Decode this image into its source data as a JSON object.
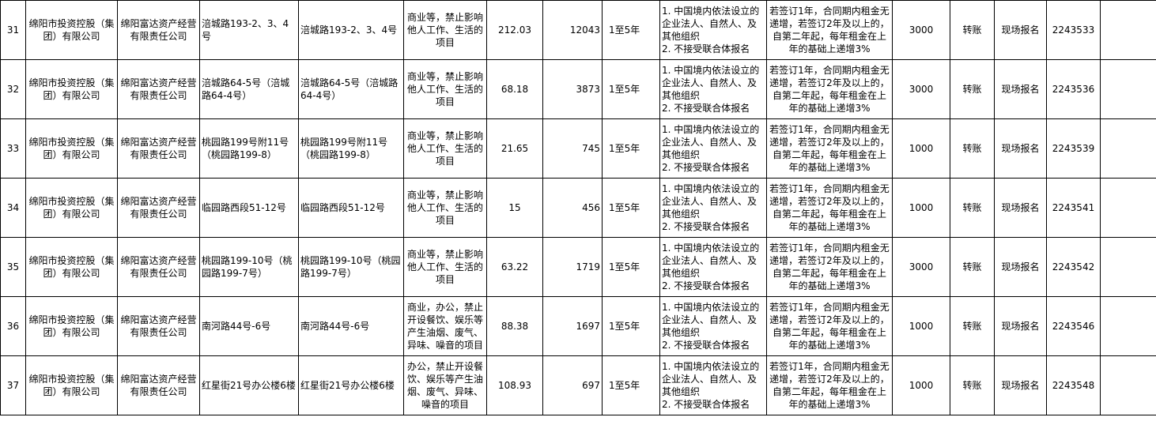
{
  "rows": [
    {
      "no": "31",
      "owner": "绵阳市投资控股（集团）有限公司",
      "operator": "绵阳富达资产经营有限责任公司",
      "address": "涪城路193-2、3、4号",
      "location": "涪城路193-2、3、4号",
      "usage": "商业等，禁止影响他人工作、生活的项目",
      "area": "212.03",
      "rent": "12043",
      "term": "1至5年",
      "requirements": [
        "1. 中国境内依法设立的企业法人、自然人、及其他组织",
        "2. 不接受联合体报名"
      ],
      "increase": "若签订1年，合同期内租金无递增，若签订2年及以上的，自第二年起，每年租金在上年的基础上递增3%",
      "deposit": "3000",
      "payment": "转账",
      "signup": "现场报名",
      "code": "2243533",
      "note": ""
    },
    {
      "no": "32",
      "owner": "绵阳市投资控股（集团）有限公司",
      "operator": "绵阳富达资产经营有限责任公司",
      "address": "涪城路64-5号（涪城路64-4号）",
      "location": "涪城路64-5号（涪城路64-4号）",
      "usage": "商业等，禁止影响他人工作、生活的项目",
      "area": "68.18",
      "rent": "3873",
      "term": "1至5年",
      "requirements": [
        "1. 中国境内依法设立的企业法人、自然人、及其他组织",
        "2. 不接受联合体报名"
      ],
      "increase": "若签订1年，合同期内租金无递增，若签订2年及以上的，自第二年起，每年租金在上年的基础上递增3%",
      "deposit": "3000",
      "payment": "转账",
      "signup": "现场报名",
      "code": "2243536",
      "note": ""
    },
    {
      "no": "33",
      "owner": "绵阳市投资控股（集团）有限公司",
      "operator": "绵阳富达资产经营有限责任公司",
      "address": "桃园路199号附11号（桃园路199-8）",
      "location": "桃园路199号附11号（桃园路199-8）",
      "usage": "商业等，禁止影响他人工作、生活的项目",
      "area": "21.65",
      "rent": "745",
      "term": "1至5年",
      "requirements": [
        "1. 中国境内依法设立的企业法人、自然人、及其他组织",
        "2. 不接受联合体报名"
      ],
      "increase": "若签订1年，合同期内租金无递增，若签订2年及以上的，自第二年起，每年租金在上年的基础上递增3%",
      "deposit": "1000",
      "payment": "转账",
      "signup": "现场报名",
      "code": "2243539",
      "note": ""
    },
    {
      "no": "34",
      "owner": "绵阳市投资控股（集团）有限公司",
      "operator": "绵阳富达资产经营有限责任公司",
      "address": "临园路西段51-12号",
      "location": "临园路西段51-12号",
      "usage": "商业等，禁止影响他人工作、生活的项目",
      "area": "15",
      "rent": "456",
      "term": "1至5年",
      "requirements": [
        "1. 中国境内依法设立的企业法人、自然人、及其他组织",
        "2. 不接受联合体报名"
      ],
      "increase": "若签订1年，合同期内租金无递增，若签订2年及以上的，自第二年起，每年租金在上年的基础上递增3%",
      "deposit": "1000",
      "payment": "转账",
      "signup": "现场报名",
      "code": "2243541",
      "note": ""
    },
    {
      "no": "35",
      "owner": "绵阳市投资控股（集团）有限公司",
      "operator": "绵阳富达资产经营有限责任公司",
      "address": "桃园路199-10号（桃园路199-7号）",
      "location": "桃园路199-10号（桃园路199-7号）",
      "usage": "商业等，禁止影响他人工作、生活的项目",
      "area": "63.22",
      "rent": "1719",
      "term": "1至5年",
      "requirements": [
        "1. 中国境内依法设立的企业法人、自然人、及其他组织",
        "2. 不接受联合体报名"
      ],
      "increase": "若签订1年，合同期内租金无递增，若签订2年及以上的，自第二年起，每年租金在上年的基础上递增3%",
      "deposit": "3000",
      "payment": "转账",
      "signup": "现场报名",
      "code": "2243542",
      "note": ""
    },
    {
      "no": "36",
      "owner": "绵阳市投资控股（集团）有限公司",
      "operator": "绵阳富达资产经营有限责任公司",
      "address": "南河路44号-6号",
      "location": "南河路44号-6号",
      "usage": "商业，办公，禁止开设餐饮、娱乐等产生油烟、废气、异味、噪音的项目",
      "area": "88.38",
      "rent": "1697",
      "term": "1至5年",
      "requirements": [
        "1. 中国境内依法设立的企业法人、自然人、及其他组织",
        "2. 不接受联合体报名"
      ],
      "increase": "若签订1年，合同期内租金无递增，若签订2年及以上的，自第二年起，每年租金在上年的基础上递增3%",
      "deposit": "1000",
      "payment": "转账",
      "signup": "现场报名",
      "code": "2243546",
      "note": ""
    },
    {
      "no": "37",
      "owner": "绵阳市投资控股（集团）有限公司",
      "operator": "绵阳富达资产经营有限责任公司",
      "address": "红星街21号办公楼6楼",
      "location": "红星街21号办公楼6楼",
      "usage": "办公，禁止开设餐饮、娱乐等产生油烟、废气、异味、噪音的项目",
      "area": "108.93",
      "rent": "697",
      "term": "1至5年",
      "requirements": [
        "1. 中国境内依法设立的企业法人、自然人、及其他组织",
        "2. 不接受联合体报名"
      ],
      "increase": "若签订1年，合同期内租金无递增，若签订2年及以上的，自第二年起，每年租金在上年的基础上递增3%",
      "deposit": "1000",
      "payment": "转账",
      "signup": "现场报名",
      "code": "2243548",
      "note": ""
    }
  ]
}
